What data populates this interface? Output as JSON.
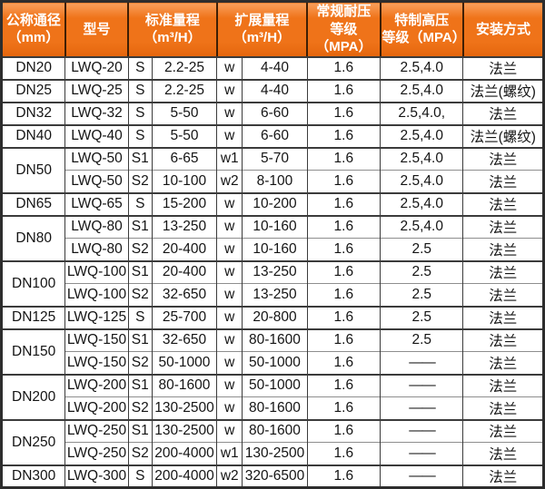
{
  "colors": {
    "header-bg": "#EF7319",
    "header-bg-light": "#F9A05C",
    "header-bg-dark": "#E4660D",
    "header-border": "#3F1F04",
    "header-text": "#FFFFFF",
    "grid-dark": "#3B3B3B",
    "grid-light": "#8E8E8E",
    "outer-border": "#2D2D2D",
    "text": "#141414",
    "bg": "#FFFFFF"
  },
  "header": {
    "columns": [
      {
        "label": "公称通径\n（mm）",
        "span": 1
      },
      {
        "label": "型号",
        "span": 1
      },
      {
        "label": "标准量程\n（m³/H）",
        "span": 2
      },
      {
        "label": "扩展量程\n（m³/H）",
        "span": 2
      },
      {
        "label": "常规耐压\n等级（MPA）",
        "span": 1
      },
      {
        "label": "特制高压\n等级（MPA）",
        "span": 1
      },
      {
        "label": "安装方式",
        "span": 1
      }
    ]
  },
  "rows": [
    {
      "dn": "DN20",
      "span": 1,
      "model": "LWQ-20",
      "std_code": "S",
      "std_range": "2.2-25",
      "ext_code": "w",
      "ext_range": "4-40",
      "pn_mpa": "1.6",
      "hp_mpa": "2.5,4.0",
      "install": "法兰"
    },
    {
      "dn": "DN25",
      "span": 1,
      "model": "LWQ-25",
      "std_code": "S",
      "std_range": "2.2-25",
      "ext_code": "w",
      "ext_range": "4-40",
      "pn_mpa": "1.6",
      "hp_mpa": "2.5,4.0",
      "install": "法兰(螺纹)"
    },
    {
      "dn": "DN32",
      "span": 1,
      "model": "LWQ-32",
      "std_code": "S",
      "std_range": "5-50",
      "ext_code": "w",
      "ext_range": "6-60",
      "pn_mpa": "1.6",
      "hp_mpa": "2.5,4.0,",
      "install": "法兰"
    },
    {
      "dn": "DN40",
      "span": 1,
      "model": "LWQ-40",
      "std_code": "S",
      "std_range": "5-50",
      "ext_code": "w",
      "ext_range": "6-60",
      "pn_mpa": "1.6",
      "hp_mpa": "2.5,4.0",
      "install": "法兰(螺纹)"
    },
    {
      "dn": "DN50",
      "span": 2,
      "model": "LWQ-50",
      "std_code": "S1",
      "std_range": "6-65",
      "ext_code": "w1",
      "ext_range": "5-70",
      "pn_mpa": "1.6",
      "hp_mpa": "2.5,4.0",
      "install": "法兰"
    },
    {
      "model": "LWQ-50",
      "std_code": "S2",
      "std_range": "10-100",
      "ext_code": "w2",
      "ext_range": "8-100",
      "pn_mpa": "1.6",
      "hp_mpa": "2.5,4.0",
      "install": "法兰"
    },
    {
      "dn": "DN65",
      "span": 1,
      "model": "LWQ-65",
      "std_code": "S",
      "std_range": "15-200",
      "ext_code": "w",
      "ext_range": "10-200",
      "pn_mpa": "1.6",
      "hp_mpa": "2.5,4.0",
      "install": "法兰"
    },
    {
      "dn": "DN80",
      "span": 2,
      "model": "LWQ-80",
      "std_code": "S1",
      "std_range": "13-250",
      "ext_code": "w",
      "ext_range": "10-160",
      "pn_mpa": "1.6",
      "hp_mpa": "2.5,4.0",
      "install": "法兰"
    },
    {
      "model": "LWQ-80",
      "std_code": "S2",
      "std_range": "20-400",
      "ext_code": "w",
      "ext_range": "10-160",
      "pn_mpa": "1.6",
      "hp_mpa": "2.5",
      "install": "法兰"
    },
    {
      "dn": "DN100",
      "span": 2,
      "model": "LWQ-100",
      "std_code": "S1",
      "std_range": "20-400",
      "ext_code": "w",
      "ext_range": "13-250",
      "pn_mpa": "1.6",
      "hp_mpa": "2.5",
      "install": "法兰"
    },
    {
      "model": "LWQ-100",
      "std_code": "S2",
      "std_range": "32-650",
      "ext_code": "w",
      "ext_range": "13-250",
      "pn_mpa": "1.6",
      "hp_mpa": "2.5",
      "install": "法兰"
    },
    {
      "dn": "DN125",
      "span": 1,
      "model": "LWQ-125",
      "std_code": "S",
      "std_range": "25-700",
      "ext_code": "w",
      "ext_range": "20-800",
      "pn_mpa": "1.6",
      "hp_mpa": "2.5",
      "install": "法兰"
    },
    {
      "dn": "DN150",
      "span": 2,
      "model": "LWQ-150",
      "std_code": "S1",
      "std_range": "32-650",
      "ext_code": "w",
      "ext_range": "80-1600",
      "pn_mpa": "1.6",
      "hp_mpa": "2.5",
      "install": "法兰"
    },
    {
      "model": "LWQ-150",
      "std_code": "S2",
      "std_range": "50-1000",
      "ext_code": "w",
      "ext_range": "50-1000",
      "pn_mpa": "1.6",
      "hp_mpa": "——",
      "install": "法兰"
    },
    {
      "dn": "DN200",
      "span": 2,
      "model": "LWQ-200",
      "std_code": "S1",
      "std_range": "80-1600",
      "ext_code": "w",
      "ext_range": "50-1000",
      "pn_mpa": "1.6",
      "hp_mpa": "——",
      "install": "法兰"
    },
    {
      "model": "LWQ-200",
      "std_code": "S2",
      "std_range": "130-2500",
      "ext_code": "w",
      "ext_range": "80-1600",
      "pn_mpa": "1.6",
      "hp_mpa": "——",
      "install": "法兰"
    },
    {
      "dn": "DN250",
      "span": 2,
      "model": "LWQ-250",
      "std_code": "S1",
      "std_range": "130-2500",
      "ext_code": "w",
      "ext_range": "80-1600",
      "pn_mpa": "1.6",
      "hp_mpa": "——",
      "install": "法兰"
    },
    {
      "model": "LWQ-250",
      "std_code": "S2",
      "std_range": "200-4000",
      "ext_code": "w1",
      "ext_range": "130-2500",
      "pn_mpa": "1.6",
      "hp_mpa": "——",
      "install": "法兰"
    },
    {
      "dn": "DN300",
      "span": 1,
      "model": "LWQ-300",
      "std_code": "S",
      "std_range": "200-4000",
      "ext_code": "w2",
      "ext_range": "320-6500",
      "pn_mpa": "1.6",
      "hp_mpa": "——",
      "install": "法兰"
    }
  ]
}
